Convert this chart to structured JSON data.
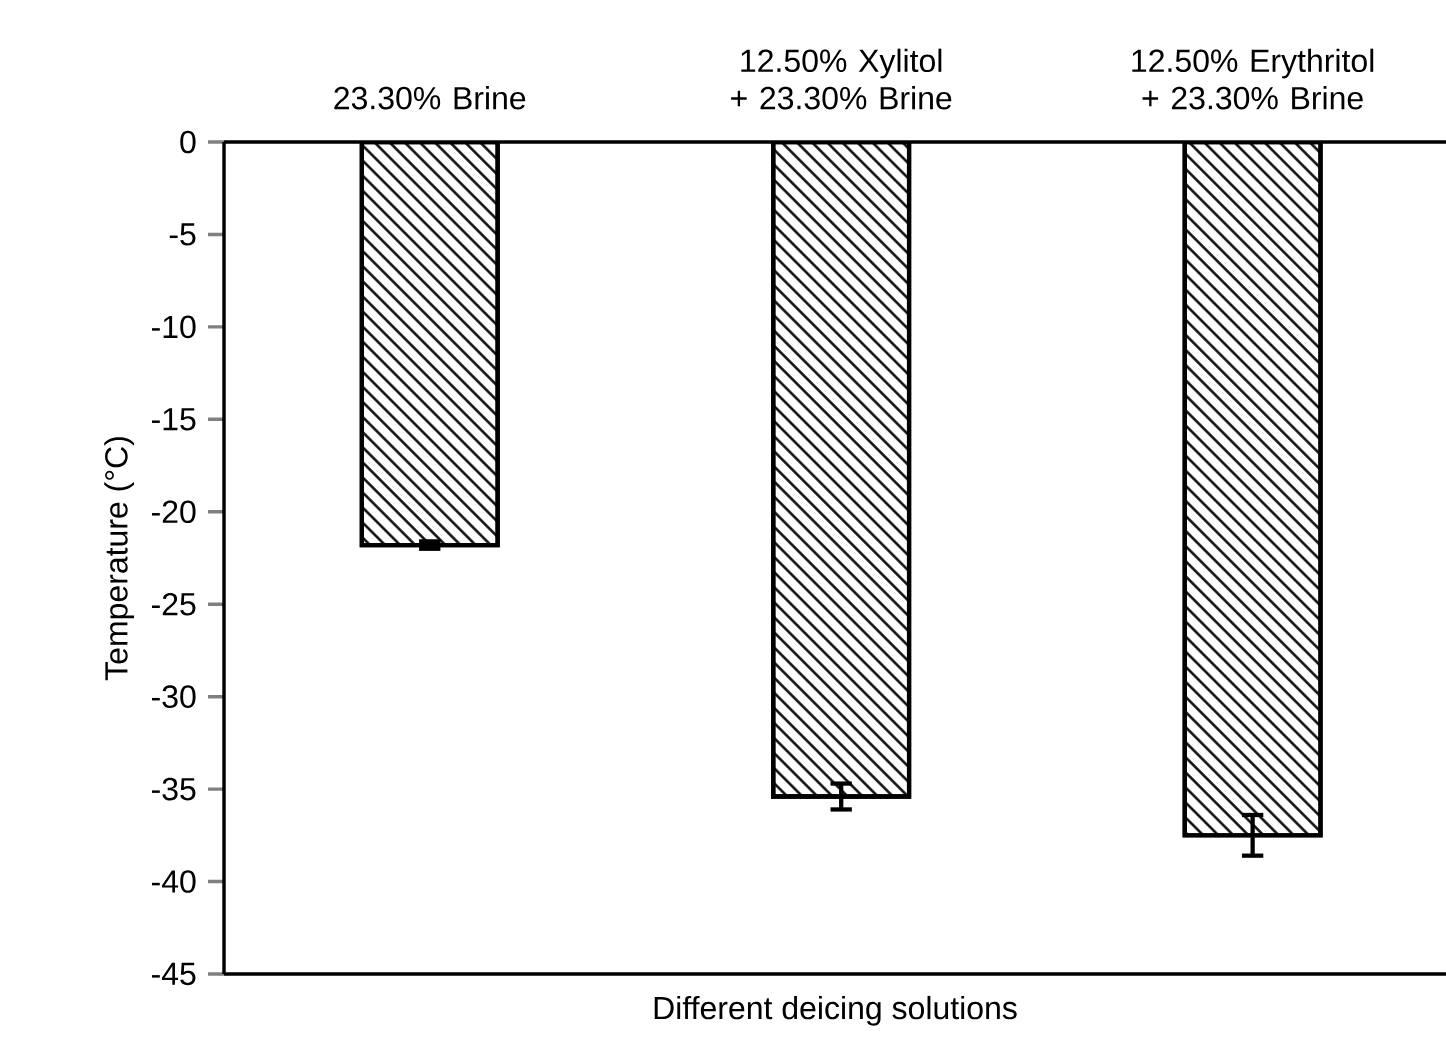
{
  "chart_data": {
    "type": "bar",
    "xlabel": "Different deicing solutions",
    "ylabel": "Temperature (°C)",
    "categories": [
      "23.30% Brine",
      "12.50% Xylitol + 23.30% Brine",
      "12.50% Erythritol + 23.30% Brine"
    ],
    "values": [
      -21.8,
      -35.4,
      -37.5
    ],
    "errors": [
      0.2,
      0.7,
      1.1
    ],
    "color": "#000000",
    "ylim": [
      -45,
      0
    ],
    "yticks": [
      0,
      -5,
      -10,
      -15,
      -20,
      -25,
      -30,
      -35,
      -40,
      -45
    ]
  }
}
